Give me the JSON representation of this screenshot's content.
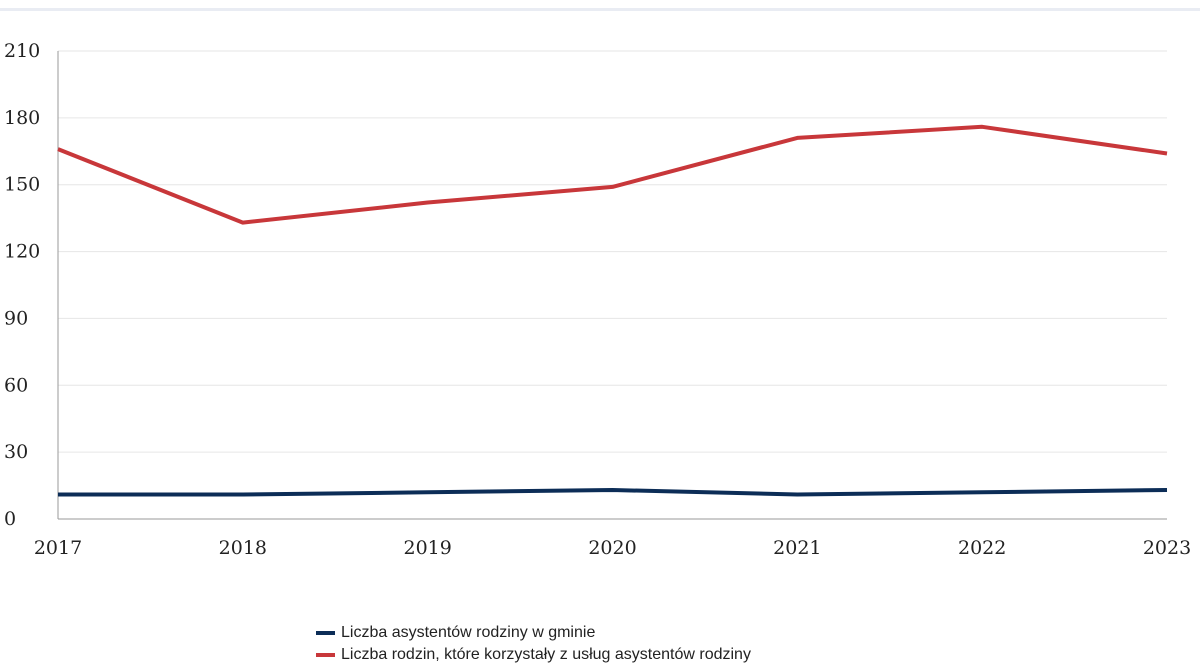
{
  "chart_data": {
    "type": "line",
    "title": "",
    "xlabel": "",
    "ylabel": "",
    "x": [
      "2017",
      "2018",
      "2019",
      "2020",
      "2021",
      "2022",
      "2023"
    ],
    "ylim": [
      0,
      210
    ],
    "yticks": [
      "0",
      "30",
      "60",
      "90",
      "120",
      "150",
      "180",
      "210"
    ],
    "grid": true,
    "legend_position": "bottom",
    "series": [
      {
        "name": "Liczba asystentów rodziny w gminie",
        "color": "#0c2d57",
        "values": [
          11,
          11,
          12,
          13,
          11,
          12,
          13
        ]
      },
      {
        "name": "Liczba rodzin, które korzystały z usług asystentów rodziny",
        "color": "#c8373a",
        "values": [
          166,
          133,
          142,
          149,
          171,
          176,
          164
        ]
      }
    ]
  }
}
